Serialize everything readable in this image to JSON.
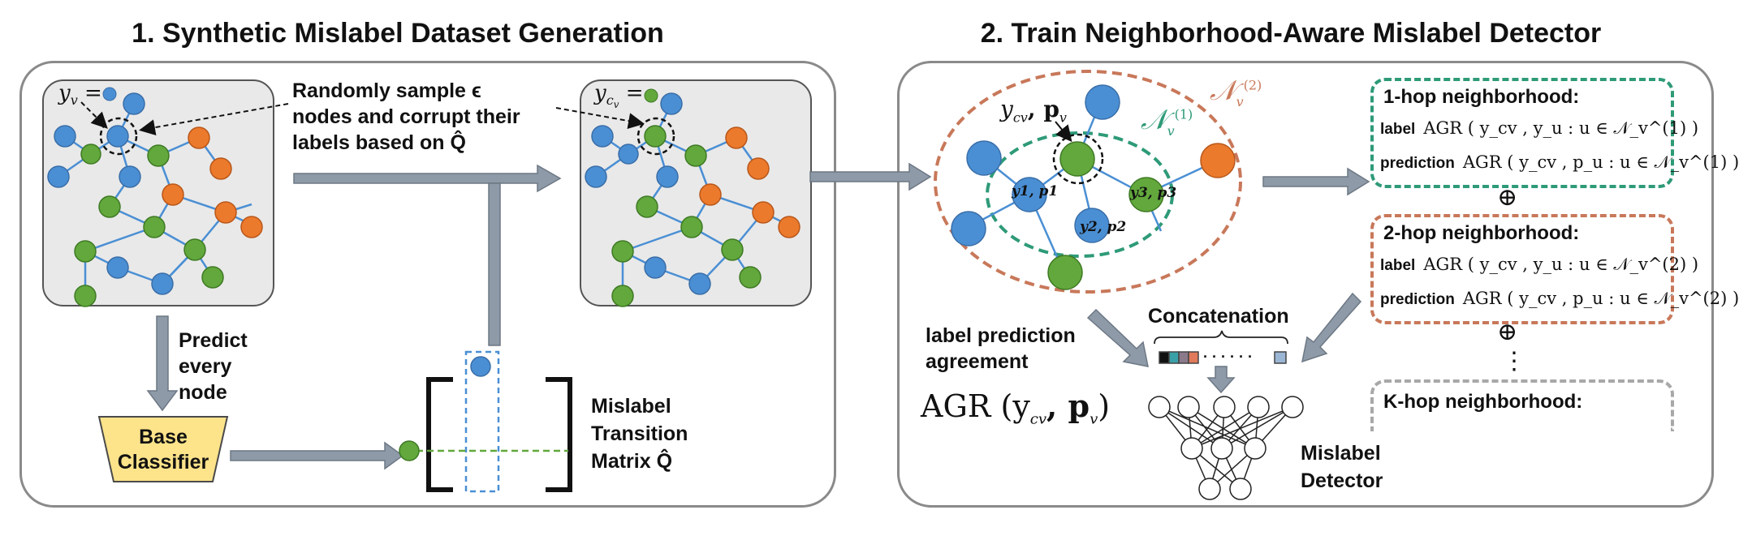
{
  "section1": {
    "title": "1. Synthetic Mislabel Dataset Generation",
    "yv_label": "y",
    "yv_sub": "v",
    "yv_eq": " = ",
    "ycv_label": "y",
    "ycv_sub": "c",
    "ycv_subsub": "v",
    "ycv_eq": " = ",
    "sample_text": [
      "Randomly sample ϵ",
      "nodes and corrupt their",
      "labels based on Q̂"
    ],
    "predict_text": [
      "Predict",
      "every",
      "node"
    ],
    "classifier_text": [
      "Base",
      "Classifier"
    ],
    "matrix_text": [
      "Mislabel",
      "Transition",
      "Matrix Q̂"
    ]
  },
  "section2": {
    "title": "2. Train Neighborhood-Aware Mislabel Detector",
    "n2_label": "𝒩",
    "n2_sub": "v",
    "n2_sup": "(2)",
    "n1_label": "𝒩",
    "n1_sub": "v",
    "n1_sup": "(1)",
    "center_label": "y",
    "center_sub": "cv",
    "center_p": ", p",
    "center_p_sub": "v",
    "node1": "y1, p1",
    "node2": "y2, p2",
    "node3": "y3, p3",
    "agreement_text": [
      "label prediction",
      "agreement"
    ],
    "agr_formula": "AGR (y",
    "agr_sub": "cv",
    "agr_tail": ", p",
    "agr_tail_sub": "v",
    "agr_close": ")",
    "concat_label": "Concatenation",
    "dots": "· · · · · ·",
    "detector_text": [
      "Mislabel",
      "Detector"
    ],
    "hop1": {
      "title": "1-hop neighborhood:",
      "label_key": "label",
      "label_formula": "AGR ( y_cv , y_u : u ∈ 𝒩_v^(1) )",
      "pred_key": "prediction",
      "pred_formula": "AGR ( y_cv , p_u : u ∈ 𝒩_v^(1) )"
    },
    "hop2": {
      "title": "2-hop neighborhood:",
      "label_key": "label",
      "label_formula": "AGR ( y_cv , y_u : u ∈ 𝒩_v^(2) )",
      "pred_key": "prediction",
      "pred_formula": "AGR ( y_cv , p_u : u ∈ 𝒩_v^(2) )"
    },
    "hopk": {
      "title": "K-hop neighborhood:"
    },
    "oplus": "⊕",
    "vdots": "⋮"
  },
  "colors": {
    "blue": "#4a8fd4",
    "green": "#62a83c",
    "orange": "#ec7a2c",
    "edge": "#4a8fd4",
    "arrow": "#8e9aa8",
    "hop1": "#2e9a78",
    "hop2": "#c8785a",
    "hopk": "#a8a8a8",
    "classifier": "#fde38a"
  }
}
